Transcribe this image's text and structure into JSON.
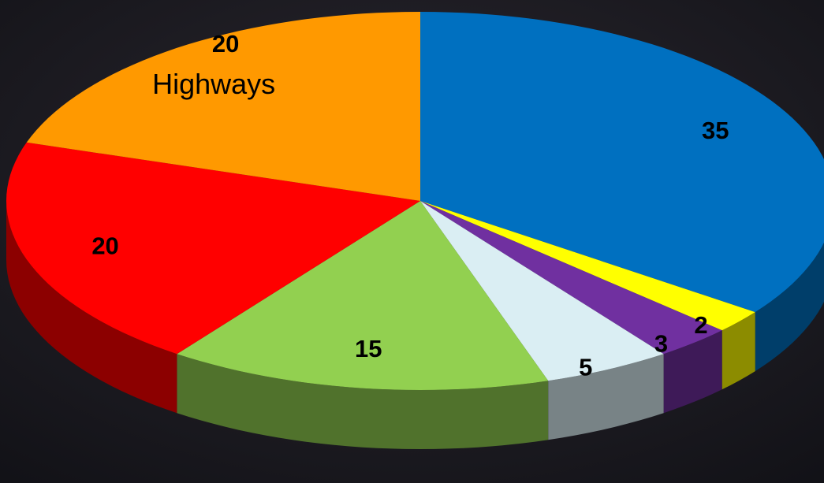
{
  "chart_data": {
    "type": "pie",
    "categories": [
      null,
      null,
      null,
      null,
      null,
      null,
      "Highways"
    ],
    "values": [
      35,
      2,
      3,
      5,
      15,
      20,
      20
    ],
    "colors": [
      "#0070c0",
      "#ffff00",
      "#7030a0",
      "#daeef3",
      "#92d050",
      "#ff0000",
      "#ff9900"
    ]
  }
}
